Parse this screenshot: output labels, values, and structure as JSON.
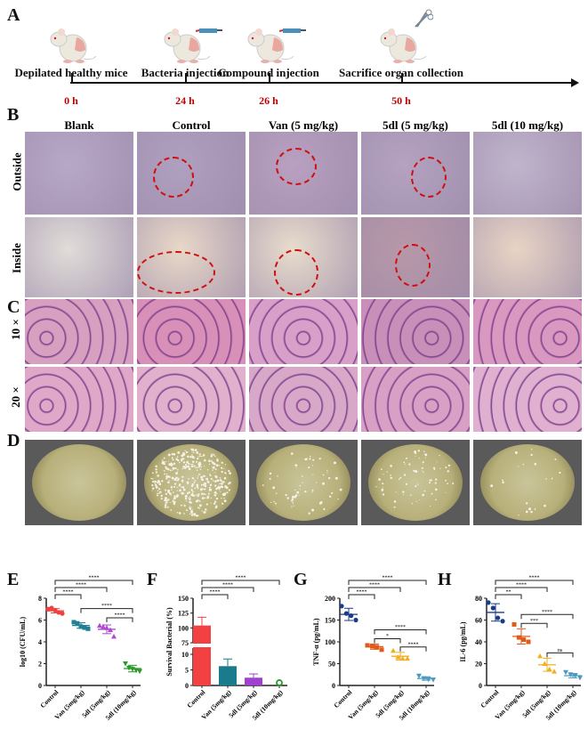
{
  "panels": {
    "a": "A",
    "b": "B",
    "c": "C",
    "d": "D",
    "e": "E",
    "f": "F",
    "g": "G",
    "h": "H"
  },
  "timeline": {
    "steps": [
      {
        "label": "Depilated healthy mice",
        "time": "0 h",
        "tool": "none"
      },
      {
        "label": "Bacteria injection",
        "time": "24 h",
        "tool": "syringe-icon"
      },
      {
        "label": "Compound injection",
        "time": "26 h",
        "tool": "syringe-icon"
      },
      {
        "label": "Sacrifice organ collection",
        "time": "50 h",
        "tool": "scissors-icon"
      }
    ]
  },
  "groups": [
    "Blank",
    "Control",
    "Van (5 mg/kg)",
    "5dl (5 mg/kg)",
    "5dl (10 mg/kg)"
  ],
  "rows_b": [
    "Outside",
    "Inside"
  ],
  "rows_c": [
    "10 ×",
    "20 ×"
  ],
  "colors": {
    "time": "#c00000",
    "lesion_circle": "#d01010"
  },
  "chart_data": [
    {
      "type": "scatter",
      "panel": "E",
      "ylabel": "log10 (CFU/mL)",
      "ylim": [
        0,
        8
      ],
      "yticks": [
        0,
        2,
        4,
        6,
        8
      ],
      "categories": [
        "Control",
        "Van (5mg/kg)",
        "5dl (5mg/kg)",
        "5dl (10mg/kg)"
      ],
      "colors": [
        "#f04040",
        "#1f7f94",
        "#b04ad0",
        "#2a9a2a"
      ],
      "markers": [
        "circle",
        "square",
        "triangle",
        "triangle-down"
      ],
      "points": [
        [
          7.0,
          7.1,
          6.9,
          6.7,
          6.6
        ],
        [
          5.8,
          5.7,
          5.4,
          5.3,
          5.2
        ],
        [
          5.5,
          5.4,
          5.3,
          5.1,
          4.5
        ],
        [
          2.0,
          1.6,
          1.5,
          1.4,
          1.3
        ]
      ],
      "mean": [
        6.85,
        5.5,
        5.15,
        1.55
      ],
      "sd": [
        0.2,
        0.25,
        0.4,
        0.3
      ],
      "sig": [
        {
          "a": 0,
          "b": 1,
          "label": "****"
        },
        {
          "a": 0,
          "b": 2,
          "label": "****"
        },
        {
          "a": 0,
          "b": 3,
          "label": "****"
        },
        {
          "a": 1,
          "b": 3,
          "label": "****"
        },
        {
          "a": 2,
          "b": 3,
          "label": "****"
        }
      ]
    },
    {
      "type": "bar",
      "panel": "F",
      "ylabel": "Survival Bacterial (%)",
      "broken_axis": true,
      "yticks_low": [
        0,
        5,
        10
      ],
      "yticks_high": [
        75,
        100,
        125,
        150
      ],
      "categories": [
        "Control",
        "Van (5mg/kg)",
        "5dl (5mg/kg)",
        "5dl (10mg/kg)"
      ],
      "colors": [
        "#f34040",
        "#1b7a8c",
        "#a040d0",
        "#2a9a2a"
      ],
      "values": [
        104,
        6.2,
        2.5,
        0.3
      ],
      "sd": [
        14,
        2.3,
        1.2,
        0
      ],
      "sig": [
        {
          "a": 0,
          "b": 1,
          "label": "****"
        },
        {
          "a": 0,
          "b": 2,
          "label": "****"
        },
        {
          "a": 0,
          "b": 3,
          "label": "****"
        }
      ]
    },
    {
      "type": "scatter",
      "panel": "G",
      "ylabel": "TNF-α (pg/mL)",
      "ylim": [
        0,
        200
      ],
      "yticks": [
        0,
        50,
        100,
        150,
        200
      ],
      "categories": [
        "Control",
        "Van (5mg/kg)",
        "5dl (5mg/kg)",
        "5dl (10mg/kg)"
      ],
      "colors": [
        "#1a3a8a",
        "#e05a1a",
        "#f0b020",
        "#4a9ac0"
      ],
      "markers": [
        "circle",
        "square",
        "triangle",
        "triangle-down"
      ],
      "points": [
        [
          182,
          165,
          160,
          150
        ],
        [
          92,
          90,
          88,
          82
        ],
        [
          80,
          65,
          62,
          62
        ],
        [
          22,
          16,
          14,
          13
        ]
      ],
      "mean": [
        163,
        89,
        67,
        16
      ],
      "sd": [
        14,
        6,
        9,
        4
      ],
      "sig": [
        {
          "a": 0,
          "b": 1,
          "label": "****"
        },
        {
          "a": 0,
          "b": 2,
          "label": "****"
        },
        {
          "a": 0,
          "b": 3,
          "label": "****"
        },
        {
          "a": 1,
          "b": 3,
          "label": "****"
        },
        {
          "a": 1,
          "b": 2,
          "label": "*"
        },
        {
          "a": 2,
          "b": 3,
          "label": "****"
        }
      ]
    },
    {
      "type": "scatter",
      "panel": "H",
      "ylabel": "IL-6 (pg/mL)",
      "ylim": [
        0,
        80
      ],
      "yticks": [
        0,
        20,
        40,
        60,
        80
      ],
      "categories": [
        "Control",
        "Van (5mg/kg)",
        "5dl (5mg/kg)",
        "5dl (10mg/kg)"
      ],
      "colors": [
        "#1a3a8a",
        "#e05a1a",
        "#f0b020",
        "#4a9ac0"
      ],
      "markers": [
        "circle",
        "square",
        "triangle",
        "triangle-down"
      ],
      "points": [
        [
          76,
          71,
          62,
          59
        ],
        [
          56,
          44,
          42,
          40
        ],
        [
          27,
          20,
          15,
          13
        ],
        [
          12,
          10,
          9,
          7
        ]
      ],
      "mean": [
        67,
        45,
        19,
        9
      ],
      "sd": [
        8,
        7,
        6,
        2
      ],
      "sig": [
        {
          "a": 0,
          "b": 1,
          "label": "**"
        },
        {
          "a": 0,
          "b": 2,
          "label": "****"
        },
        {
          "a": 0,
          "b": 3,
          "label": "****"
        },
        {
          "a": 1,
          "b": 3,
          "label": "****"
        },
        {
          "a": 1,
          "b": 2,
          "label": "***"
        },
        {
          "a": 2,
          "b": 3,
          "label": "ns"
        }
      ]
    }
  ]
}
